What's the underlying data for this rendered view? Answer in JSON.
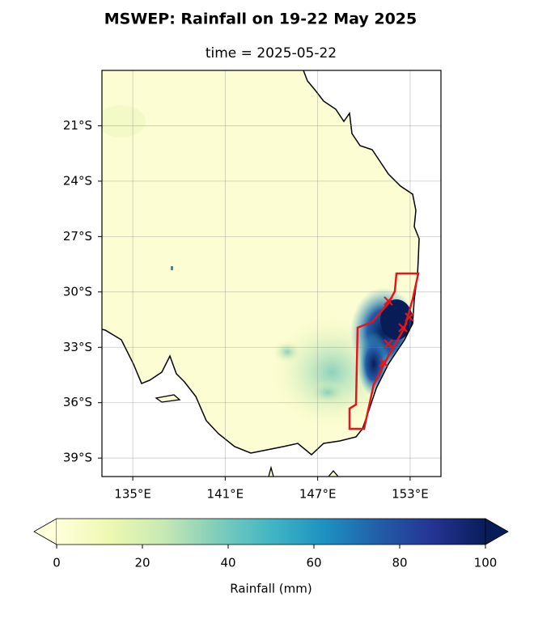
{
  "map": {
    "title": "MSWEP: Rainfall on 19-22 May 2025",
    "subtitle": "time = 2025-05-22",
    "xlim": [
      133,
      155
    ],
    "ylim": [
      -40,
      -18
    ],
    "xticks": [
      {
        "value": 135,
        "label": "135°E"
      },
      {
        "value": 141,
        "label": "141°E"
      },
      {
        "value": 147,
        "label": "147°E"
      },
      {
        "value": 153,
        "label": "153°E"
      }
    ],
    "yticks": [
      {
        "value": -21,
        "label": "21°S"
      },
      {
        "value": -24,
        "label": "24°S"
      },
      {
        "value": -27,
        "label": "27°S"
      },
      {
        "value": -30,
        "label": "30°S"
      },
      {
        "value": -33,
        "label": "33°S"
      },
      {
        "value": -36,
        "label": "36°S"
      },
      {
        "value": -39,
        "label": "39°S"
      }
    ],
    "grid": true,
    "colorbar": {
      "label": "Rainfall (mm)",
      "lim": [
        0,
        100
      ],
      "ticks": [
        0,
        20,
        40,
        60,
        80,
        100
      ]
    }
  }
}
